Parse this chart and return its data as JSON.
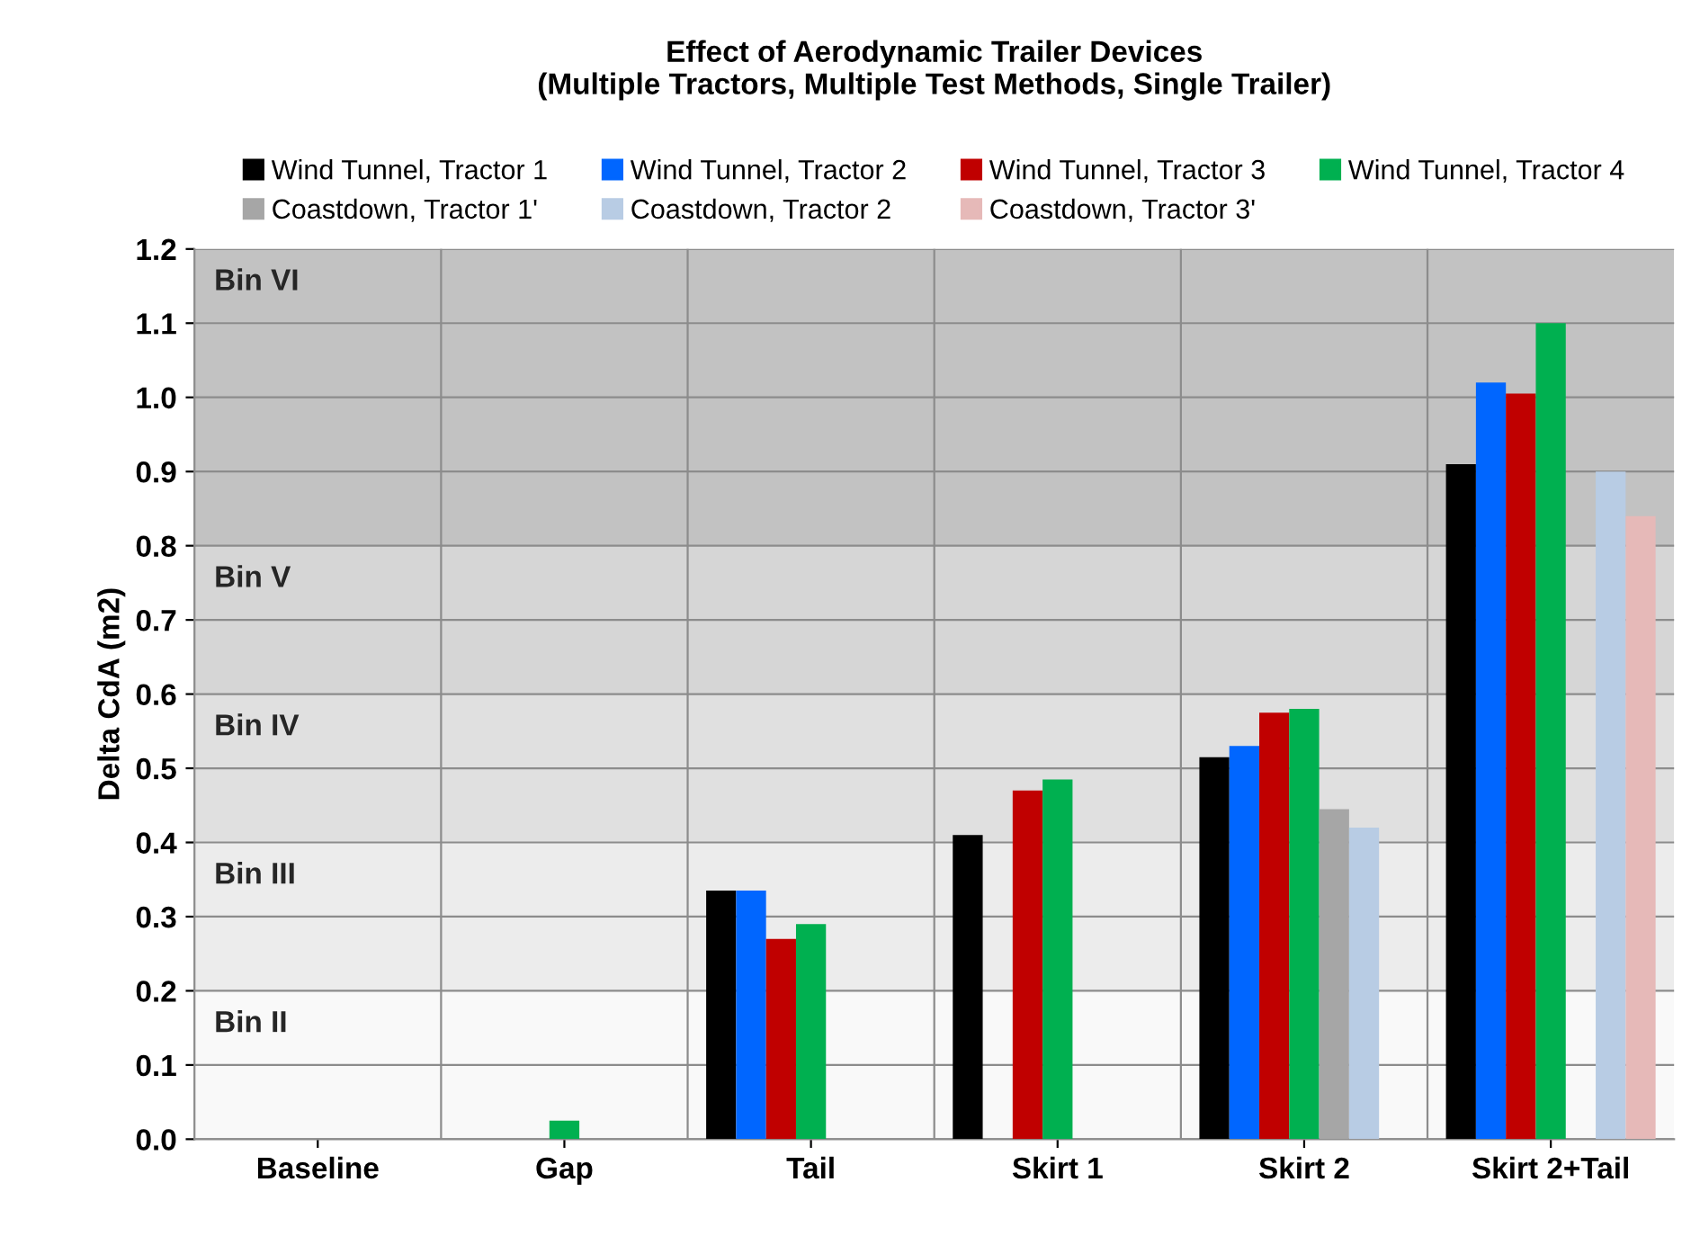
{
  "chart_data": {
    "type": "bar",
    "title": "Effect of Aerodynamic Trailer Devices\n(Multiple Tractors, Multiple Test Methods, Single Trailer)",
    "ylabel": "Delta CdA (m2)",
    "categories": [
      "Baseline",
      "Gap",
      "Tail",
      "Skirt 1",
      "Skirt 2",
      "Skirt 2+Tail"
    ],
    "series": [
      {
        "name": "Wind Tunnel, Tractor 1",
        "color": "#000000",
        "values": [
          0,
          0,
          0.335,
          0.41,
          0.515,
          0.91
        ]
      },
      {
        "name": "Wind Tunnel, Tractor 2",
        "color": "#0066ff",
        "values": [
          0,
          0,
          0.335,
          null,
          0.53,
          1.02
        ]
      },
      {
        "name": "Wind Tunnel, Tractor 3",
        "color": "#c00000",
        "values": [
          0,
          0,
          0.27,
          0.47,
          0.575,
          1.005
        ]
      },
      {
        "name": "Wind Tunnel, Tractor 4",
        "color": "#00b050",
        "values": [
          0,
          0.025,
          0.29,
          0.485,
          0.58,
          1.1
        ]
      },
      {
        "name": "Coastdown, Tractor 1'",
        "color": "#a6a6a6",
        "values": [
          null,
          null,
          null,
          null,
          0.445,
          null
        ]
      },
      {
        "name": "Coastdown, Tractor 2",
        "color": "#b8cce4",
        "values": [
          null,
          null,
          null,
          null,
          0.42,
          0.9
        ]
      },
      {
        "name": "Coastdown, Tractor 3'",
        "color": "#e6b9b8",
        "values": [
          null,
          null,
          null,
          null,
          null,
          0.84
        ]
      }
    ],
    "ylim": [
      0,
      1.2
    ],
    "yticks": [
      {
        "value": 0,
        "label": "0.0"
      },
      0.1,
      0.2,
      0.3,
      0.4,
      0.5,
      0.6,
      0.7,
      0.8,
      0.9,
      {
        "value": 1,
        "label": "1.0"
      },
      1.1,
      1.2
    ],
    "bands": [
      {
        "axis": "y",
        "from": 0,
        "to": 0.2,
        "label": "Bin II",
        "color": "#f9f9f9"
      },
      {
        "axis": "y",
        "from": 0.2,
        "to": 0.4,
        "label": "Bin III",
        "color": "#ececec"
      },
      {
        "axis": "y",
        "from": 0.4,
        "to": 0.6,
        "label": "Bin IV",
        "color": "#e0e0e0"
      },
      {
        "axis": "y",
        "from": 0.6,
        "to": 0.8,
        "label": "Bin V",
        "color": "#d6d6d6"
      },
      {
        "axis": "y",
        "from": 0.8,
        "to": 1.2,
        "label": "Bin VI",
        "color": "#c2c2c2"
      }
    ],
    "grid": true,
    "legend": "top"
  }
}
